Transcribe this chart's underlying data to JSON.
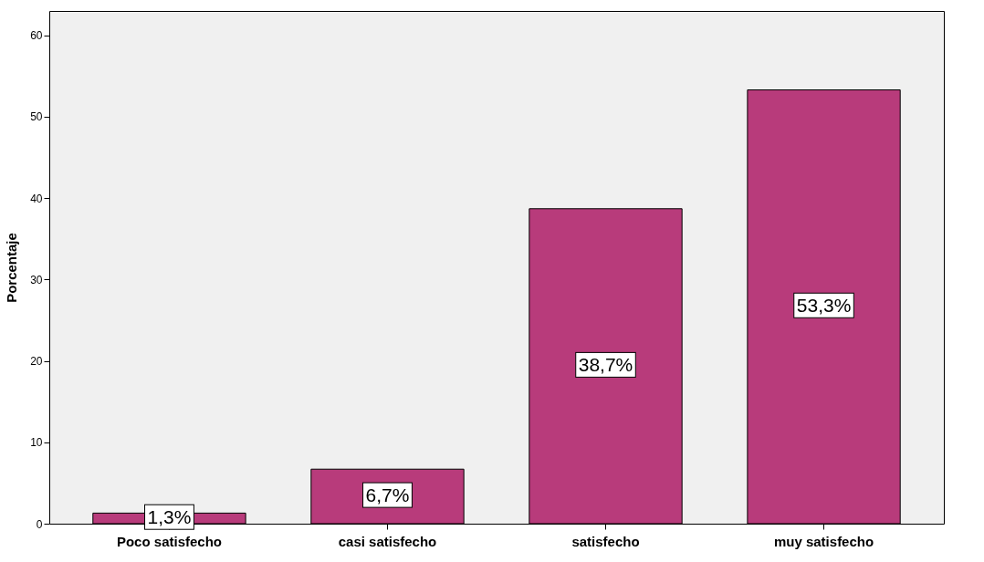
{
  "chart_data": {
    "type": "bar",
    "ylabel": "Porcentaje",
    "categories": [
      "Poco satisfecho",
      "casi satisfecho",
      "satisfecho",
      "muy satisfecho"
    ],
    "values": [
      1.3,
      6.7,
      38.7,
      53.3
    ],
    "value_labels": [
      "1,3%",
      "6,7%",
      "38,7%",
      "53,3%"
    ],
    "color": "#b83b7b",
    "ylim": [
      0,
      63
    ],
    "yticks": [
      0,
      10,
      20,
      30,
      40,
      50,
      60
    ],
    "grid": false
  }
}
